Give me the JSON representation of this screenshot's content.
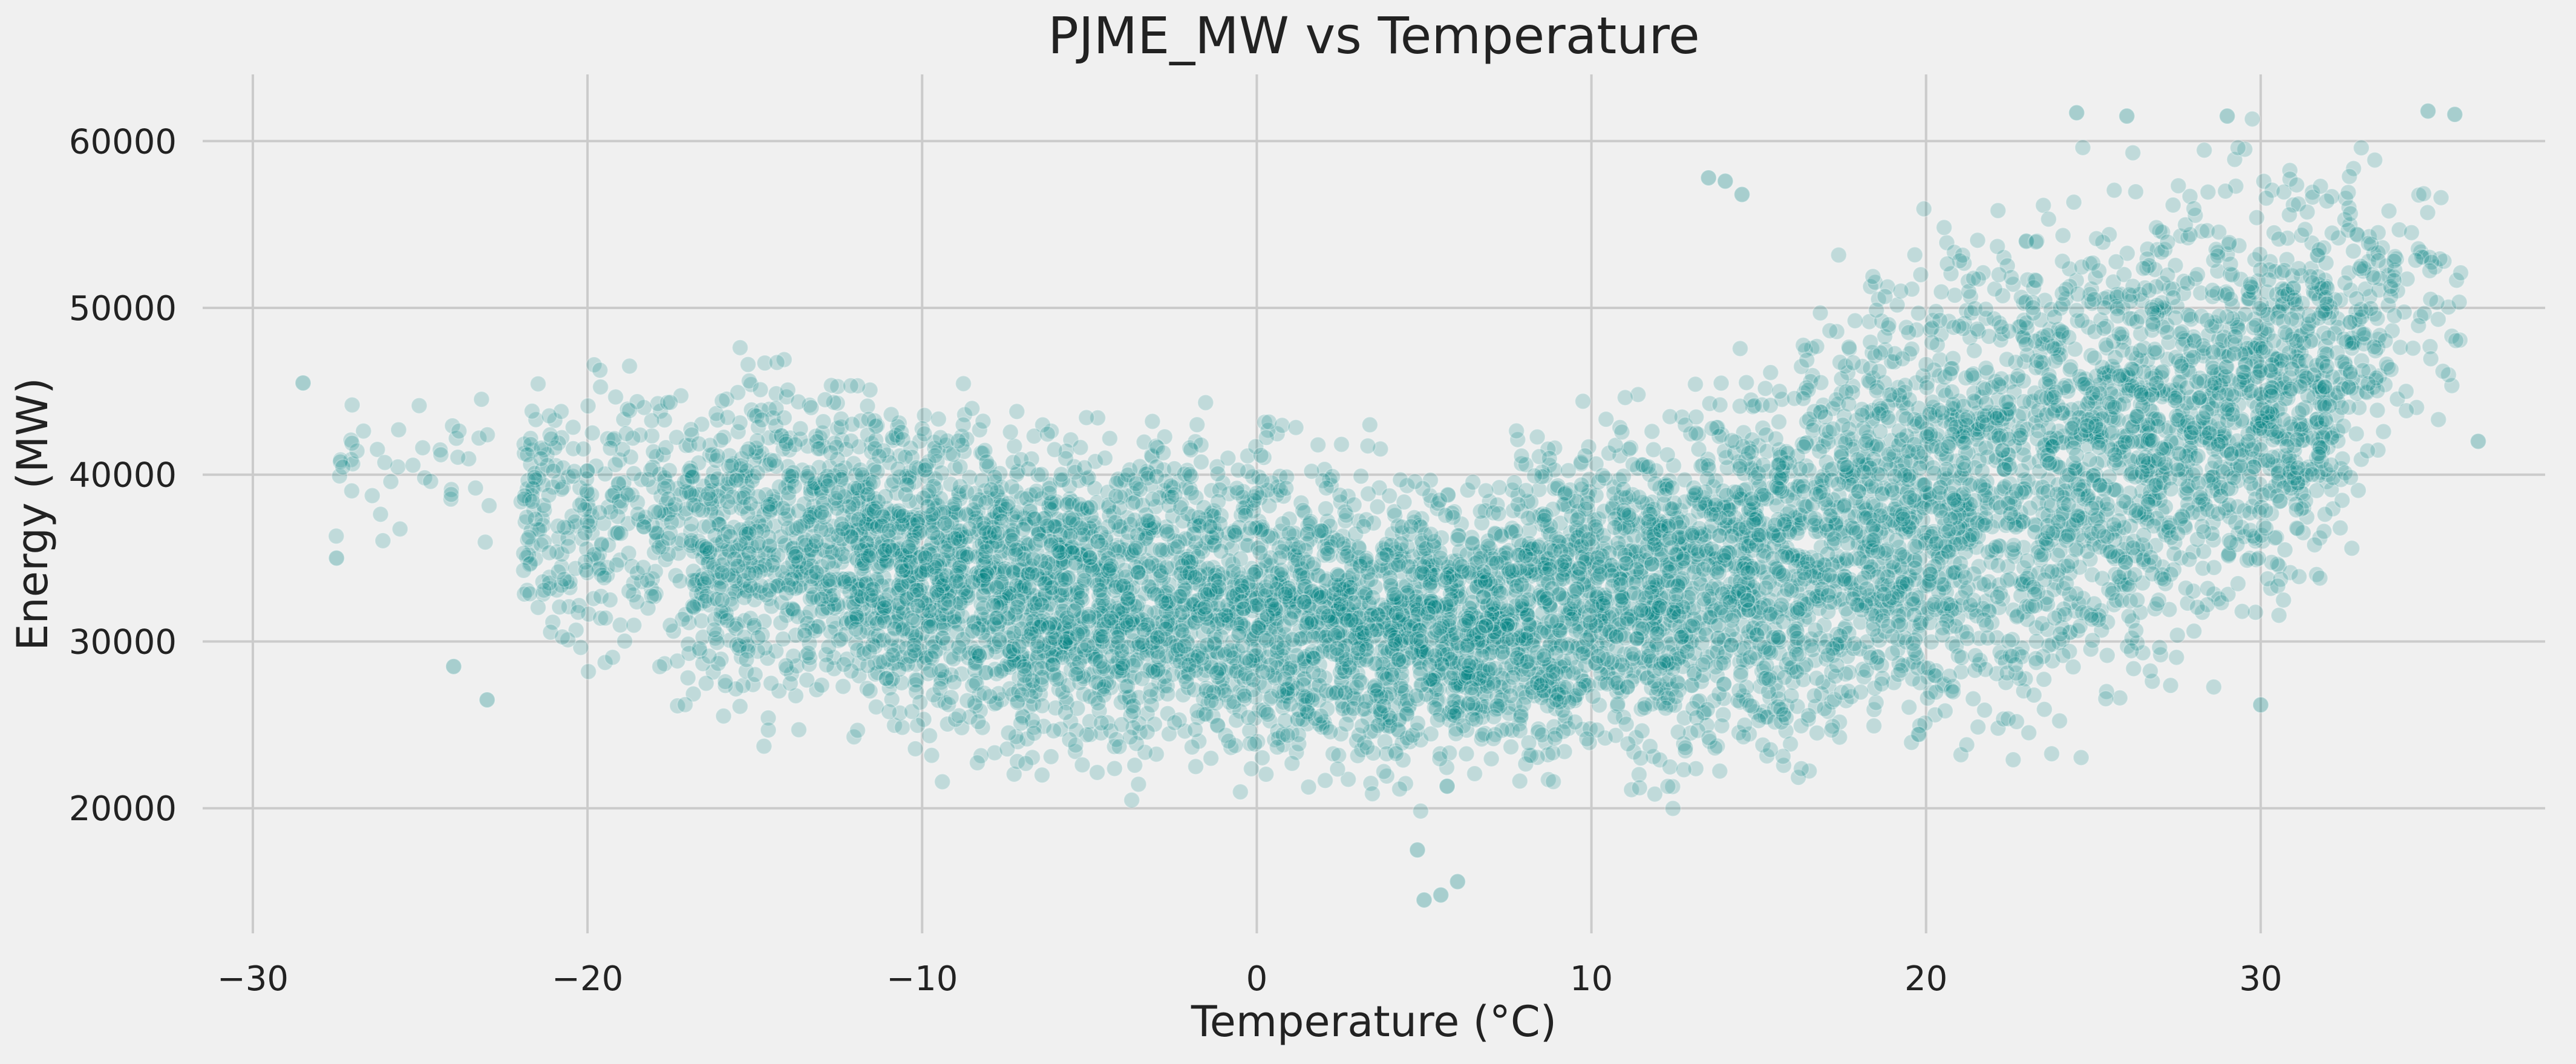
{
  "chart_data": {
    "type": "scatter",
    "title": "PJME_MW vs Temperature",
    "xlabel": "Temperature (°C)",
    "ylabel": "Energy (MW)",
    "xlim": [
      -31.5,
      38.5
    ],
    "ylim": [
      12500,
      64000
    ],
    "xticks": [
      -30,
      -20,
      -10,
      0,
      10,
      20,
      30
    ],
    "xtick_labels": [
      "−30",
      "−20",
      "−10",
      "0",
      "10",
      "20",
      "30"
    ],
    "yticks": [
      20000,
      30000,
      40000,
      50000,
      60000
    ],
    "ytick_labels": [
      "20000",
      "30000",
      "40000",
      "50000",
      "60000"
    ],
    "grid": true,
    "legend": "none",
    "marker_color": "#008080",
    "marker_edge_color": "#ffffff",
    "marker_alpha": 0.2,
    "background_color": "#f0f0f0",
    "grid_color": "#cbcbcb",
    "approx_point_count": 145000,
    "density_envelope": {
      "description": "approximate lower and upper bounds of the dense point cloud per temperature bin",
      "x": [
        -28,
        -25,
        -22,
        -20,
        -18,
        -15,
        -12,
        -10,
        -8,
        -6,
        -4,
        -2,
        0,
        2,
        4,
        6,
        8,
        10,
        12,
        14,
        16,
        18,
        20,
        22,
        24,
        26,
        28,
        30,
        32,
        34,
        36
      ],
      "lower": [
        35000,
        33000,
        28500,
        25000,
        24500,
        23500,
        23500,
        21500,
        21000,
        20500,
        20500,
        20000,
        19500,
        19500,
        19000,
        19500,
        19500,
        19500,
        19500,
        19500,
        19500,
        19500,
        20000,
        20500,
        21500,
        23500,
        26000,
        28000,
        32000,
        38000,
        42000
      ],
      "upper": [
        45500,
        47000,
        47500,
        49000,
        48500,
        49000,
        47500,
        46500,
        46000,
        45000,
        44000,
        45500,
        45500,
        43500,
        43000,
        42000,
        44000,
        45000,
        46000,
        49000,
        50000,
        54000,
        57000,
        58500,
        59500,
        60500,
        61000,
        61000,
        61000,
        62000,
        57000
      ]
    },
    "outliers": [
      {
        "x": 5.0,
        "y": 14500
      },
      {
        "x": 5.5,
        "y": 14800
      },
      {
        "x": 6.0,
        "y": 15600
      },
      {
        "x": 4.8,
        "y": 17500
      },
      {
        "x": 13.5,
        "y": 57800
      },
      {
        "x": 14.0,
        "y": 57600
      },
      {
        "x": 14.5,
        "y": 56800
      },
      {
        "x": 24.5,
        "y": 61700
      },
      {
        "x": 26.0,
        "y": 61500
      },
      {
        "x": 29.0,
        "y": 61500
      },
      {
        "x": 35.0,
        "y": 61800
      },
      {
        "x": 35.8,
        "y": 61600
      },
      {
        "x": -28.5,
        "y": 45500
      },
      {
        "x": -27.5,
        "y": 35000
      },
      {
        "x": -24.0,
        "y": 28500
      },
      {
        "x": -23.0,
        "y": 26500
      },
      {
        "x": 36.5,
        "y": 42000
      },
      {
        "x": 30.0,
        "y": 26200
      }
    ]
  }
}
